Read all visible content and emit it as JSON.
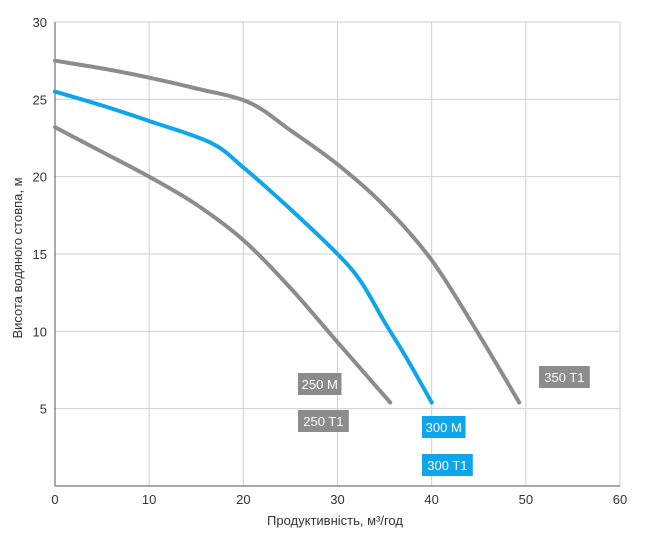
{
  "chart_data": {
    "type": "line",
    "title": "",
    "xlabel": "Продуктивність, м³/год",
    "ylabel": "Висота водяного стовпа, м",
    "xlim": [
      0,
      60
    ],
    "ylim": [
      0,
      30
    ],
    "xticks": [
      0,
      10,
      20,
      30,
      40,
      50,
      60
    ],
    "yticks": [
      5,
      10,
      15,
      20,
      25,
      30
    ],
    "grid": true,
    "series": [
      {
        "name": "250 M",
        "color": "#8c8c8c",
        "x": [
          0,
          5,
          10,
          15,
          20,
          25,
          30,
          35.6
        ],
        "y": [
          23.2,
          21.6,
          20.0,
          18.2,
          15.9,
          12.8,
          9.3,
          5.4
        ]
      },
      {
        "name": "300 M",
        "color": "#0ea5ea",
        "x": [
          0,
          5,
          10,
          16.5,
          20,
          25,
          30,
          32.5,
          35,
          37.5,
          40
        ],
        "y": [
          25.5,
          24.6,
          23.6,
          22.2,
          20.6,
          17.9,
          15.0,
          13.2,
          10.6,
          8.1,
          5.4
        ]
      },
      {
        "name": "350 T1",
        "color": "#8c8c8c",
        "x": [
          0,
          5,
          10,
          15,
          20.6,
          25,
          30,
          35,
          40,
          45,
          49.3
        ],
        "y": [
          27.5,
          27.0,
          26.4,
          25.7,
          24.8,
          23.0,
          20.8,
          18.1,
          14.6,
          9.8,
          5.4
        ]
      }
    ],
    "labels": [
      {
        "text": "250 M",
        "color": "#8c8c8c",
        "anchor_series": "250 M"
      },
      {
        "text": "250 T1",
        "color": "#8c8c8c",
        "anchor_series": "250 M"
      },
      {
        "text": "300 M",
        "color": "#0ea5ea",
        "anchor_series": "300 M"
      },
      {
        "text": "300 T1",
        "color": "#0ea5ea",
        "anchor_series": "300 M"
      },
      {
        "text": "350 T1",
        "color": "#8c8c8c",
        "anchor_series": "350 T1"
      }
    ]
  }
}
